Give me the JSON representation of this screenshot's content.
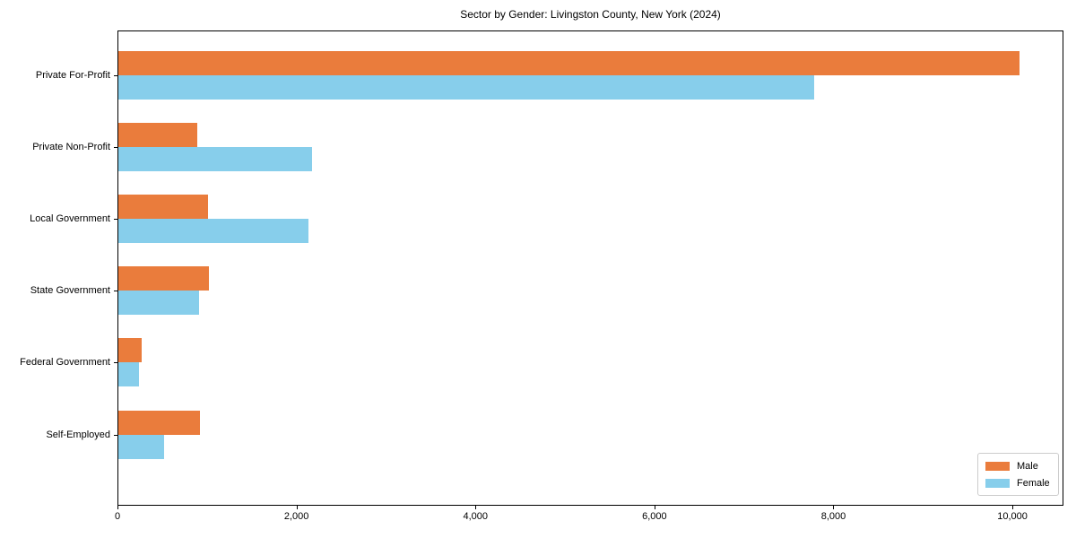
{
  "chart_data": {
    "type": "bar",
    "orientation": "horizontal",
    "title": "Sector by Gender: Livingston County, New York (2024)",
    "categories": [
      "Private For-Profit",
      "Private Non-Profit",
      "Local Government",
      "State Government",
      "Federal Government",
      "Self-Employed"
    ],
    "series": [
      {
        "name": "Male",
        "color": "#EA7C3C",
        "values": [
          10070,
          885,
          1005,
          1015,
          258,
          910
        ]
      },
      {
        "name": "Female",
        "color": "#87CEEB",
        "values": [
          7770,
          2165,
          2120,
          900,
          228,
          515
        ]
      }
    ],
    "xlabel": "",
    "ylabel": "",
    "xlim": [
      0,
      10570
    ],
    "xticks": [
      {
        "value": 0,
        "label": "0"
      },
      {
        "value": 2000,
        "label": "2,000"
      },
      {
        "value": 4000,
        "label": "4,000"
      },
      {
        "value": 6000,
        "label": "6,000"
      },
      {
        "value": 8000,
        "label": "8,000"
      },
      {
        "value": 10000,
        "label": "10,000"
      }
    ],
    "legend_position": "lower right",
    "grid": false,
    "axis_color": "#000000",
    "background_color": "#ffffff"
  }
}
